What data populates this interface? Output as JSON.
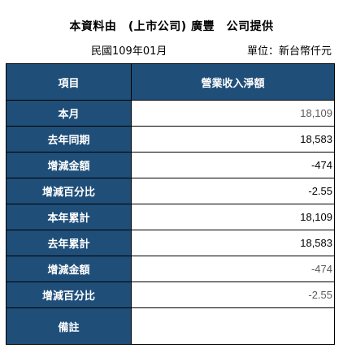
{
  "header": {
    "source": "本資料由　(上市公司) 廣豐　公司提供",
    "period": "民國109年01月",
    "unit": "單位：新台幣仟元"
  },
  "table": {
    "col_item": "項目",
    "col_value": "營業收入淨額",
    "rows": [
      {
        "label": "本月",
        "value": "18,109"
      },
      {
        "label": "去年同期",
        "value": "18,583"
      },
      {
        "label": "增減金額",
        "value": "-474"
      },
      {
        "label": "增減百分比",
        "value": "-2.55"
      },
      {
        "label": "本年累計",
        "value": "18,109"
      },
      {
        "label": "去年累計",
        "value": "18,583"
      },
      {
        "label": "增減金額",
        "value": "-474"
      },
      {
        "label": "增減百分比",
        "value": "-2.55"
      }
    ],
    "note_label": "備註",
    "note_value": ""
  },
  "colors": {
    "header_bg": "#1f4e79",
    "header_text": "#ffffff",
    "border": "#000000"
  }
}
